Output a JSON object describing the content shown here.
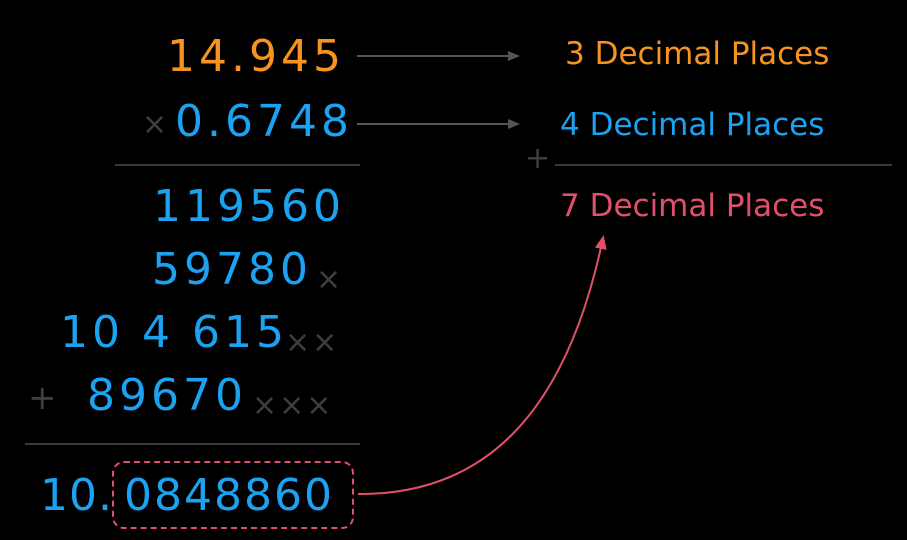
{
  "multiplicand": "14.945",
  "multiplier_sign": "×",
  "multiplier": "0.6748",
  "partials": [
    {
      "digits": "119560",
      "shift": ""
    },
    {
      "digits": "59780",
      "shift": "×"
    },
    {
      "digits": "10 4 615",
      "shift": "××"
    },
    {
      "digits": "89670",
      "shift": "×××"
    }
  ],
  "plus_sign": "+",
  "result_integer": "10.",
  "result_fraction": "0848860",
  "labels": {
    "first": "3 Decimal Places",
    "second": "4 Decimal Places",
    "sum": "7 Decimal Places",
    "plus": "+"
  },
  "colors": {
    "orange": "#F7931E",
    "blue": "#1BA3F2",
    "pink": "#E0506A",
    "gray": "#3c3c3c"
  }
}
